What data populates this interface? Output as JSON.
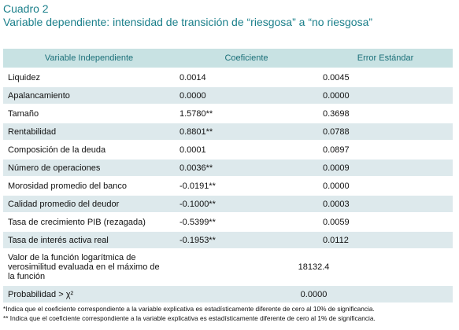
{
  "title": "Cuadro 2",
  "subtitle": "Variable dependiente: intensidad de transición de “riesgosa” a “no riesgosa”",
  "table": {
    "header": [
      "Variable Independiente",
      "Coeficiente",
      "Error Estándar"
    ],
    "rows": [
      [
        "Liquidez",
        "0.0014",
        "0.0045"
      ],
      [
        "Apalancamiento",
        "0.0000",
        "0.0000"
      ],
      [
        "Tamaño",
        "1.5780**",
        "0.3698"
      ],
      [
        "Rentabilidad",
        "0.8801**",
        "0.0788"
      ],
      [
        "Composición de la deuda",
        "0.0001",
        "0.0897"
      ],
      [
        "Número de operaciones",
        "0.0036**",
        "0.0009"
      ],
      [
        "Morosidad promedio del banco",
        "-0.0191**",
        "0.0000"
      ],
      [
        "Calidad promedio del deudor",
        "-0.1000**",
        "0.0003"
      ],
      [
        "Tasa de crecimiento PIB (rezagada)",
        "-0.5399**",
        "0.0059"
      ],
      [
        "Tasa de interés activa real",
        "-0.1953**",
        "0.0112"
      ],
      [
        "Valor de la función logarítmica de verosimilitud evaluada en el máximo de la función",
        "18132.4"
      ],
      [
        "Probabilidad > χ²",
        "0.0000"
      ]
    ]
  },
  "footnotes": [
    "*Indica que el coeficiente correspondiente a la variable explicativa es estadísticamente diferente de cero al 10% de significancia.",
    "** Indica que el coeficiente correspondiente a la variable explicativa es estadísticamente diferente de cero al 1% de significancia."
  ]
}
